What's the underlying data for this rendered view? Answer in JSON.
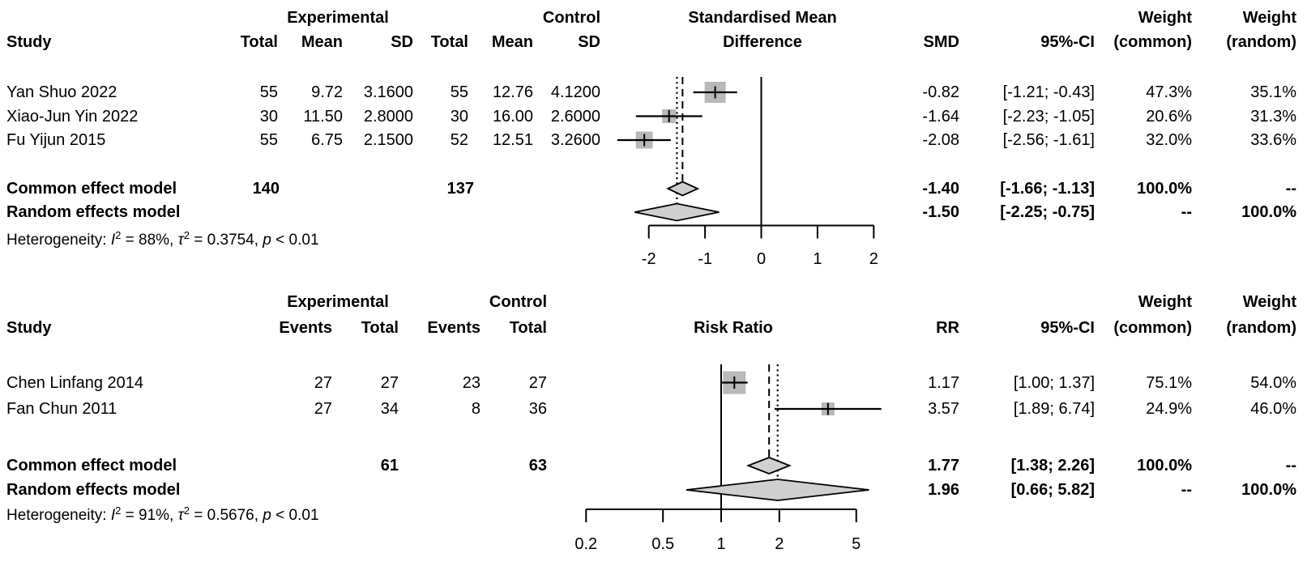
{
  "colors": {
    "square": "#b9b9b9",
    "diamond_fill": "#cfcfcf",
    "line": "#000000",
    "background": "#ffffff"
  },
  "top": {
    "header": {
      "group_exp": "Experimental",
      "group_ctrl": "Control",
      "study": "Study",
      "total": "Total",
      "mean": "Mean",
      "sd": "SD",
      "effect_line1": "Standardised Mean",
      "effect_line2": "Difference",
      "smd": "SMD",
      "ci": "95%-CI",
      "weight": "Weight",
      "w_common": "(common)",
      "w_random": "(random)"
    },
    "studies": [
      {
        "name": "Yan Shuo 2022",
        "exp_total": "55",
        "exp_mean": "9.72",
        "exp_sd": "3.1600",
        "ctrl_total": "55",
        "ctrl_mean": "12.76",
        "ctrl_sd": "4.1200",
        "smd": "-0.82",
        "ci": "[-1.21; -0.43]",
        "w_common": "47.3%",
        "w_random": "35.1%"
      },
      {
        "name": "Xiao-Jun Yin 2022",
        "exp_total": "30",
        "exp_mean": "11.50",
        "exp_sd": "2.8000",
        "ctrl_total": "30",
        "ctrl_mean": "16.00",
        "ctrl_sd": "2.6000",
        "smd": "-1.64",
        "ci": "[-2.23; -1.05]",
        "w_common": "20.6%",
        "w_random": "31.3%"
      },
      {
        "name": "Fu Yijun 2015",
        "exp_total": "55",
        "exp_mean": "6.75",
        "exp_sd": "2.1500",
        "ctrl_total": "52",
        "ctrl_mean": "12.51",
        "ctrl_sd": "3.2600",
        "smd": "-2.08",
        "ci": "[-2.56; -1.61]",
        "w_common": "32.0%",
        "w_random": "33.6%"
      }
    ],
    "common": {
      "label": "Common effect model",
      "exp_total": "140",
      "ctrl_total": "137",
      "smd": "-1.40",
      "ci": "[-1.66; -1.13]",
      "w_common": "100.0%",
      "w_random": "--"
    },
    "random": {
      "label": "Random effects model",
      "smd": "-1.50",
      "ci": "[-2.25; -0.75]",
      "w_common": "--",
      "w_random": "100.0%"
    },
    "heterogeneity": {
      "segments": [
        {
          "t": "Heterogeneity: ",
          "style": "plain"
        },
        {
          "t": "I",
          "style": "italic"
        },
        {
          "t": "2",
          "style": "sup"
        },
        {
          "t": " = 88%, ",
          "style": "plain"
        },
        {
          "t": "τ",
          "style": "italic"
        },
        {
          "t": "2",
          "style": "sup"
        },
        {
          "t": " = 0.3754, ",
          "style": "plain"
        },
        {
          "t": "p",
          "style": "italic"
        },
        {
          "t": " < 0.01",
          "style": "plain"
        }
      ]
    }
  },
  "bottom": {
    "header": {
      "group_exp": "Experimental",
      "group_ctrl": "Control",
      "study": "Study",
      "events": "Events",
      "total": "Total",
      "effect": "Risk Ratio",
      "rr": "RR",
      "ci": "95%-CI",
      "weight": "Weight",
      "w_common": "(common)",
      "w_random": "(random)"
    },
    "studies": [
      {
        "name": "Chen Linfang 2014",
        "exp_events": "27",
        "exp_total": "27",
        "ctrl_events": "23",
        "ctrl_total": "27",
        "rr": "1.17",
        "ci": "[1.00; 1.37]",
        "w_common": "75.1%",
        "w_random": "54.0%"
      },
      {
        "name": "Fan Chun 2011",
        "exp_events": "27",
        "exp_total": "34",
        "ctrl_events": "8",
        "ctrl_total": "36",
        "rr": "3.57",
        "ci": "[1.89; 6.74]",
        "w_common": "24.9%",
        "w_random": "46.0%"
      }
    ],
    "common": {
      "label": "Common effect model",
      "exp_total": "61",
      "ctrl_total": "63",
      "rr": "1.77",
      "ci": "[1.38; 2.26]",
      "w_common": "100.0%",
      "w_random": "--"
    },
    "random": {
      "label": "Random effects model",
      "rr": "1.96",
      "ci": "[0.66; 5.82]",
      "w_common": "--",
      "w_random": "100.0%"
    },
    "heterogeneity": {
      "segments": [
        {
          "t": "Heterogeneity: ",
          "style": "plain"
        },
        {
          "t": "I",
          "style": "italic"
        },
        {
          "t": "2",
          "style": "sup"
        },
        {
          "t": " = 91%, ",
          "style": "plain"
        },
        {
          "t": "τ",
          "style": "italic"
        },
        {
          "t": "2",
          "style": "sup"
        },
        {
          "t": " = 0.5676, ",
          "style": "plain"
        },
        {
          "t": "p",
          "style": "italic"
        },
        {
          "t": " < 0.01",
          "style": "plain"
        }
      ]
    }
  },
  "chart_data": [
    {
      "type": "forest",
      "panel": "top",
      "title": "Standardised Mean Difference",
      "effect_measure": "SMD",
      "scale": "linear",
      "xticks": [
        -2,
        -1,
        0,
        1,
        2
      ],
      "ref_line": 0,
      "studies": [
        {
          "name": "Yan Shuo 2022",
          "est": -0.82,
          "lo": -1.21,
          "hi": -0.43,
          "weight_common": 47.3,
          "weight_random": 35.1
        },
        {
          "name": "Xiao-Jun Yin 2022",
          "est": -1.64,
          "lo": -2.23,
          "hi": -1.05,
          "weight_common": 20.6,
          "weight_random": 31.3
        },
        {
          "name": "Fu Yijun 2015",
          "est": -2.08,
          "lo": -2.56,
          "hi": -1.61,
          "weight_common": 32.0,
          "weight_random": 33.6
        }
      ],
      "common": {
        "est": -1.4,
        "lo": -1.66,
        "hi": -1.13
      },
      "random": {
        "est": -1.5,
        "lo": -2.25,
        "hi": -0.75
      },
      "heterogeneity": {
        "I2": "88%",
        "tau2": 0.3754,
        "p": "< 0.01"
      }
    },
    {
      "type": "forest",
      "panel": "bottom",
      "title": "Risk Ratio",
      "effect_measure": "RR",
      "scale": "log",
      "xticks": [
        0.2,
        0.5,
        1,
        2,
        5
      ],
      "ref_line": 1,
      "studies": [
        {
          "name": "Chen Linfang 2014",
          "est": 1.17,
          "lo": 1.0,
          "hi": 1.37,
          "weight_common": 75.1,
          "weight_random": 54.0
        },
        {
          "name": "Fan Chun 2011",
          "est": 3.57,
          "lo": 1.89,
          "hi": 6.74,
          "weight_common": 24.9,
          "weight_random": 46.0
        }
      ],
      "common": {
        "est": 1.77,
        "lo": 1.38,
        "hi": 2.26
      },
      "random": {
        "est": 1.96,
        "lo": 0.66,
        "hi": 5.82
      },
      "heterogeneity": {
        "I2": "91%",
        "tau2": 0.5676,
        "p": "< 0.01"
      }
    }
  ]
}
